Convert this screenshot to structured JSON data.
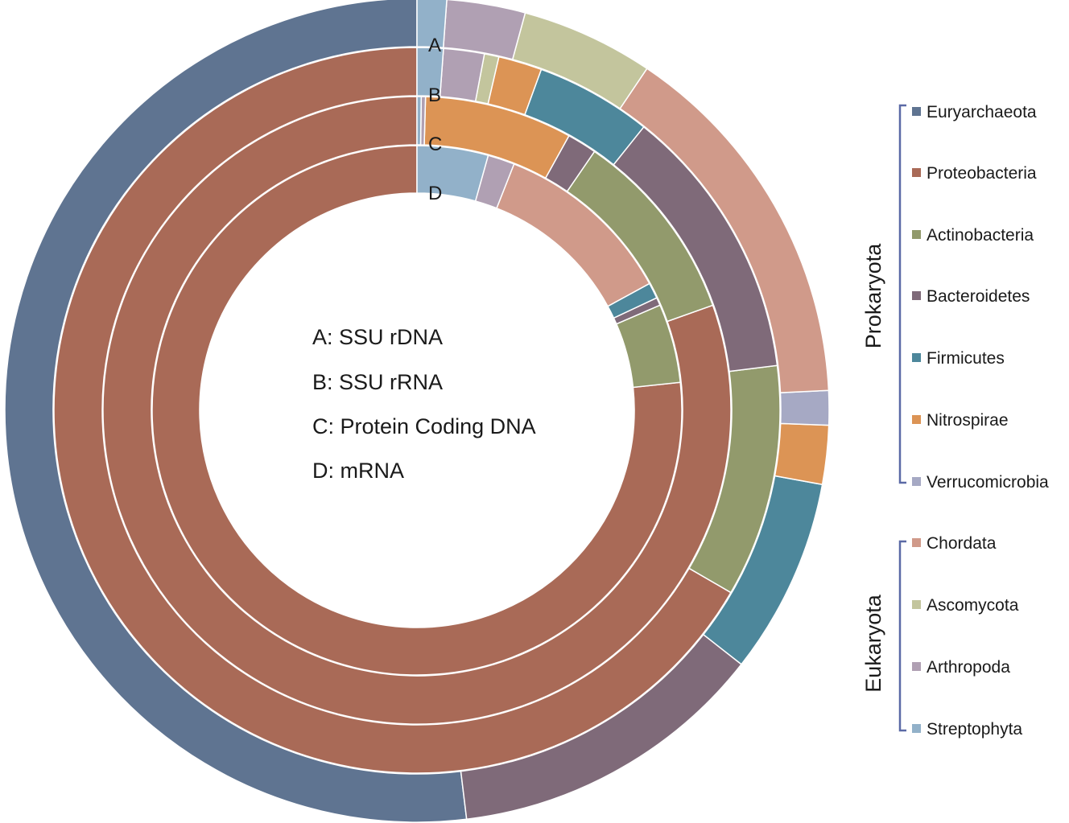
{
  "chart_data": {
    "type": "donut",
    "rings": [
      {
        "name": "A",
        "values": [
          27.0,
          0,
          0,
          6.5,
          4.0,
          1.2,
          0.7,
          7.7,
          2.7,
          1.6,
          0.6
        ]
      },
      {
        "name": "B",
        "values": [
          0,
          51.5,
          8.0,
          9.5,
          4.0,
          1.5,
          0,
          0,
          0.5,
          1.4,
          0.9
        ]
      },
      {
        "name": "C",
        "values": [
          0,
          74.0,
          9.2,
          1.4,
          0,
          7.0,
          0,
          0,
          0,
          0.2,
          0.2
        ]
      },
      {
        "name": "D",
        "values": [
          0,
          79.6,
          5.0,
          0.5,
          1.0,
          0,
          0,
          11.5,
          0,
          1.7,
          4.5
        ]
      }
    ],
    "categories": [
      "Euryarchaeota",
      "Proteobacteria",
      "Actinobacteria",
      "Bacteroidetes",
      "Firmicutes",
      "Nitrospirae",
      "Verrucomicrobia",
      "Chordata",
      "Ascomycota",
      "Arthropoda",
      "Streptophyta"
    ],
    "colors": [
      "#5f7491",
      "#a96a57",
      "#929a6c",
      "#7f6a79",
      "#4d879b",
      "#dc9455",
      "#a6a9c4",
      "#d09a8a",
      "#c3c59d",
      "#b0a0b3",
      "#92b1c9"
    ],
    "order": "counterclockwise-from-top",
    "groups": [
      {
        "label": "Prokaryota",
        "members": [
          "Euryarchaeota",
          "Proteobacteria",
          "Actinobacteria",
          "Bacteroidetes",
          "Firmicutes",
          "Nitrospirae",
          "Verrucomicrobia"
        ]
      },
      {
        "label": "Eukaryota",
        "members": [
          "Chordata",
          "Ascomycota",
          "Arthropoda",
          "Streptophyta"
        ]
      }
    ],
    "legend_position": "right",
    "center_text": [
      "A: SSU rDNA",
      "B: SSU rRNA",
      "C: Protein Coding DNA",
      "D: mRNA"
    ],
    "ring_labels": [
      "A",
      "B",
      "C",
      "D"
    ]
  }
}
